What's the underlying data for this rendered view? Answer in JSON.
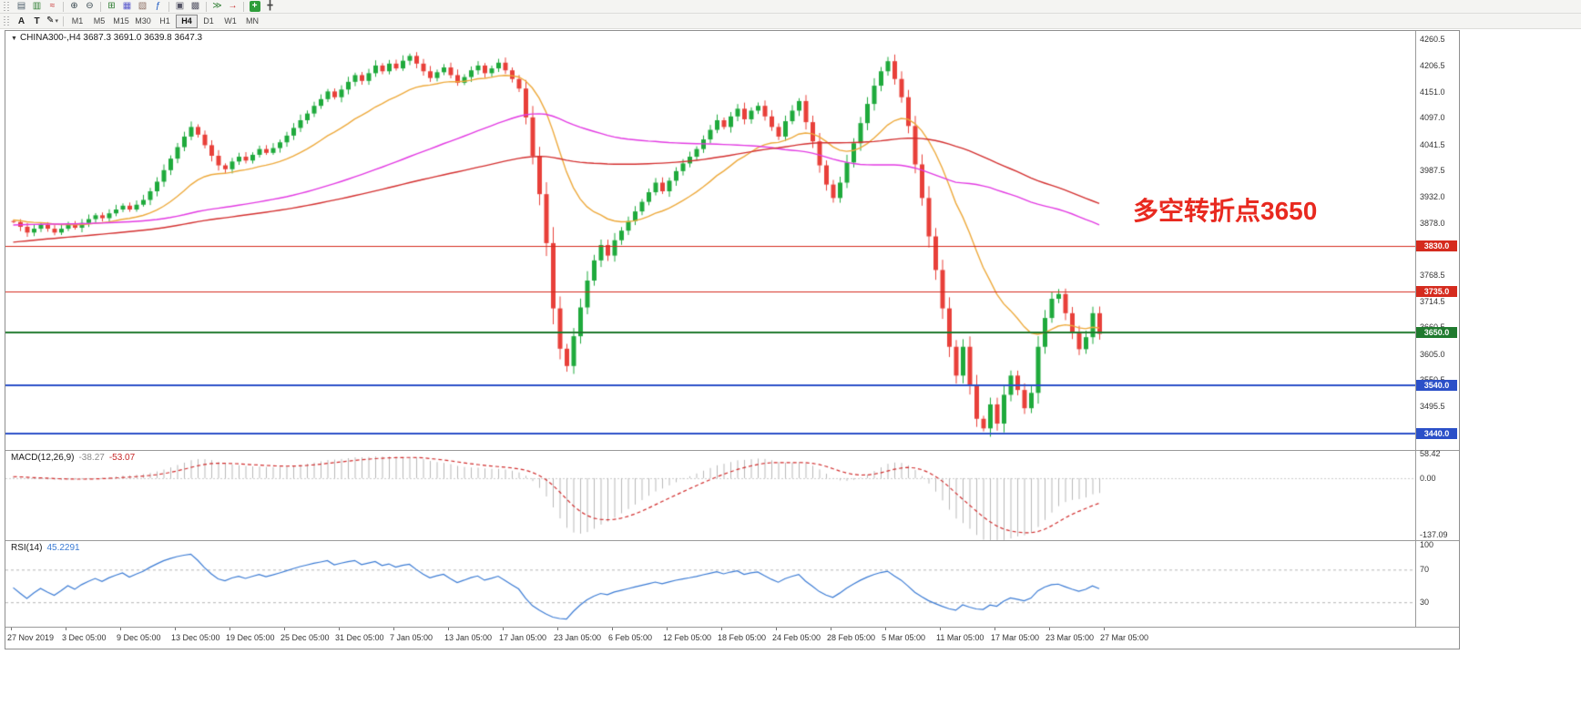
{
  "toolbar": {
    "row1": [
      {
        "name": "bar-chart-mode-icon",
        "glyph": "▤",
        "color": "#50616d"
      },
      {
        "name": "candlestick-mode-icon",
        "glyph": "▥",
        "color": "#2e7d32"
      },
      {
        "name": "line-chart-mode-icon",
        "glyph": "≈",
        "color": "#c62828"
      },
      {
        "sep": true
      },
      {
        "name": "zoom-in-icon",
        "glyph": "⊕",
        "color": "#37474f"
      },
      {
        "name": "zoom-out-icon",
        "glyph": "⊖",
        "color": "#37474f"
      },
      {
        "sep": true
      },
      {
        "name": "new-chart-icon",
        "glyph": "⊞",
        "color": "#2e7d32"
      },
      {
        "name": "chart-profiles-icon",
        "glyph": "▦",
        "color": "#5a5acd"
      },
      {
        "name": "templates-icon",
        "glyph": "▧",
        "color": "#8d6e63"
      },
      {
        "name": "indicators-icon",
        "glyph": "ƒ",
        "color": "#1a57c2"
      },
      {
        "sep": true
      },
      {
        "name": "tile-windows-icon",
        "glyph": "▣",
        "color": "#556"
      },
      {
        "name": "cascade-windows-icon",
        "glyph": "▩",
        "color": "#556"
      },
      {
        "sep": true
      },
      {
        "name": "auto-scroll-icon",
        "glyph": "≫",
        "color": "#2e7d32"
      },
      {
        "name": "chart-shift-icon",
        "glyph": "→",
        "color": "#c62828"
      },
      {
        "sep": true
      },
      {
        "name": "new-order-icon",
        "glyph": "+",
        "color": "#2e9e3a",
        "chip": true
      },
      {
        "name": "crosshair-icon",
        "glyph": "╋",
        "color": "#444"
      }
    ],
    "row2": {
      "letter_tools": [
        {
          "name": "arrow-tool-button",
          "label": "A"
        },
        {
          "name": "text-tool-button",
          "label": "T"
        }
      ],
      "draw_tool_glyph": "✎",
      "timeframes": [
        "M1",
        "M5",
        "M15",
        "M30",
        "H1",
        "H4",
        "D1",
        "W1",
        "MN"
      ],
      "active_timeframe": "H4"
    }
  },
  "chart": {
    "title_symbol": "CHINA300-,H4",
    "title_ohlc": "3687.3 3691.0 3639.8 3647.3",
    "annotation": {
      "text": "多空转折点3650",
      "color": "#e8291f"
    }
  },
  "macd": {
    "name": "MACD(12,26,9)",
    "value_main": "-38.27",
    "value_signal": "-53.07",
    "periods": [
      12,
      26,
      9
    ],
    "ylim": [
      -150,
      66
    ],
    "y_ticks": [
      {
        "v": 58.42,
        "label": "58.42"
      },
      {
        "v": 0,
        "label": "0.00"
      },
      {
        "v": -137.09,
        "label": "-137.09"
      }
    ]
  },
  "rsi": {
    "name": "RSI(14)",
    "value": "45.2291",
    "period": 14,
    "levels": [
      70,
      30
    ],
    "ylim": [
      0,
      105
    ],
    "y_ticks": [
      {
        "v": 100,
        "label": "100"
      },
      {
        "v": 70,
        "label": "70"
      },
      {
        "v": 30,
        "label": "30"
      }
    ]
  },
  "chart_data": {
    "type": "candlestick",
    "symbol": "CHINA300-",
    "timeframe": "H4",
    "ylim": [
      3405,
      4278
    ],
    "y_ticks": [
      4260.5,
      4206.5,
      4151.0,
      4097.0,
      4041.5,
      3987.5,
      3932.0,
      3878.0,
      3824.0,
      3768.5,
      3714.5,
      3660.5,
      3605.0,
      3550.5,
      3495.5,
      3441.5
    ],
    "x_labels": [
      "27 Nov 2019",
      "3 Dec 05:00",
      "9 Dec 05:00",
      "13 Dec 05:00",
      "19 Dec 05:00",
      "25 Dec 05:00",
      "31 Dec 05:00",
      "7 Jan 05:00",
      "13 Jan 05:00",
      "17 Jan 05:00",
      "23 Jan 05:00",
      "6 Feb 05:00",
      "12 Feb 05:00",
      "18 Feb 05:00",
      "24 Feb 05:00",
      "28 Feb 05:00",
      "5 Mar 05:00",
      "11 Mar 05:00",
      "17 Mar 05:00",
      "23 Mar 05:00",
      "27 Mar 05:00"
    ],
    "colors": {
      "up": "#1faa3c",
      "down": "#e8403a",
      "macd_hist": "#b9b9b9",
      "macd_signal": "#d12f2f",
      "rsi_line": "#3b7bd4"
    },
    "levels": [
      {
        "value": 3830,
        "label": "3830.0",
        "color": "#d52b1e",
        "thickness": 1
      },
      {
        "value": 3735,
        "label": "3735.0",
        "color": "#d52b1e",
        "thickness": 1
      },
      {
        "value": 3650,
        "label": "3650.0",
        "color": "#1f7a2e",
        "thickness": 2
      },
      {
        "value": 3540,
        "label": "3540.0",
        "color": "#2b50c8",
        "thickness": 2
      },
      {
        "value": 3440,
        "label": "3440.0",
        "color": "#2b50c8",
        "thickness": 2
      }
    ],
    "moving_averages": [
      {
        "type": "ema",
        "period": 20,
        "color": "#eda93b"
      },
      {
        "type": "sma",
        "period": 60,
        "color": "#e23ae2"
      },
      {
        "type": "sma",
        "period": 100,
        "color": "#d32f2f"
      }
    ],
    "warmup_closes": [
      3720,
      3726,
      3731,
      3728,
      3735,
      3742,
      3738,
      3745,
      3752,
      3748,
      3755,
      3762,
      3758,
      3764,
      3770,
      3766,
      3772,
      3779,
      3775,
      3781,
      3788,
      3784,
      3790,
      3796,
      3792,
      3798,
      3804,
      3800,
      3806,
      3812,
      3808,
      3814,
      3820,
      3816,
      3822,
      3828,
      3824,
      3830,
      3836,
      3832,
      3838,
      3844,
      3840,
      3846,
      3852,
      3848,
      3854,
      3860,
      3856,
      3862,
      3858,
      3864,
      3860,
      3866,
      3862,
      3868,
      3864,
      3870,
      3866,
      3862,
      3868,
      3874,
      3870,
      3876,
      3872,
      3878,
      3874,
      3870,
      3876,
      3882,
      3878,
      3874,
      3880,
      3876,
      3882,
      3878,
      3884,
      3880,
      3876,
      3882,
      3888,
      3884,
      3880,
      3886,
      3882,
      3888,
      3884,
      3890,
      3886,
      3882,
      3888,
      3884,
      3890,
      3886,
      3892,
      3888,
      3884,
      3890,
      3886,
      3882
    ],
    "closes": [
      3880,
      3870,
      3858,
      3866,
      3874,
      3866,
      3858,
      3866,
      3876,
      3868,
      3878,
      3886,
      3894,
      3888,
      3898,
      3906,
      3914,
      3906,
      3916,
      3926,
      3944,
      3964,
      3988,
      4012,
      4036,
      4058,
      4078,
      4062,
      4040,
      4018,
      3998,
      3990,
      4006,
      4016,
      4008,
      4020,
      4032,
      4024,
      4034,
      4046,
      4060,
      4076,
      4092,
      4106,
      4122,
      4136,
      4152,
      4140,
      4156,
      4172,
      4186,
      4174,
      4190,
      4206,
      4194,
      4210,
      4200,
      4216,
      4226,
      4210,
      4194,
      4180,
      4192,
      4202,
      4186,
      4170,
      4182,
      4196,
      4206,
      4190,
      4200,
      4212,
      4196,
      4178,
      4158,
      4098,
      4018,
      3938,
      3836,
      3700,
      3616,
      3580,
      3642,
      3702,
      3758,
      3800,
      3832,
      3810,
      3842,
      3862,
      3882,
      3902,
      3922,
      3942,
      3962,
      3944,
      3966,
      3986,
      4002,
      4016,
      4032,
      4052,
      4072,
      4092,
      4078,
      4100,
      4116,
      4094,
      4112,
      4122,
      4100,
      4078,
      4058,
      4090,
      4112,
      4132,
      4088,
      4048,
      3998,
      3958,
      3930,
      3962,
      4004,
      4044,
      4086,
      4126,
      4164,
      4194,
      4215,
      4178,
      4140,
      4080,
      4000,
      3930,
      3850,
      3780,
      3700,
      3620,
      3560,
      3620,
      3540,
      3470,
      3450,
      3500,
      3460,
      3520,
      3560,
      3530,
      3492,
      3524,
      3620,
      3680,
      3720,
      3730,
      3690,
      3650,
      3615,
      3640,
      3690,
      3647
    ]
  }
}
